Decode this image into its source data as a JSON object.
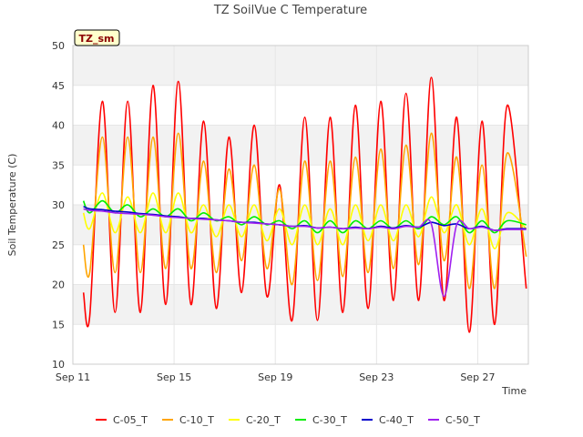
{
  "chart_data": {
    "type": "line",
    "title": "TZ SoilVue C Temperature",
    "badge": "TZ_sm",
    "xlabel": "Time",
    "ylabel": "Soil Temperature (C)",
    "xlim": [
      "2023-09-11",
      "2023-09-29"
    ],
    "ylim": [
      10,
      50
    ],
    "yticks": [
      10,
      15,
      20,
      25,
      30,
      35,
      40,
      45,
      50
    ],
    "xticks": [
      {
        "date": "2023-09-11",
        "label": "Sep 11"
      },
      {
        "date": "2023-09-15",
        "label": "Sep 15"
      },
      {
        "date": "2023-09-19",
        "label": "Sep 19"
      },
      {
        "date": "2023-09-23",
        "label": "Sep 23"
      },
      {
        "date": "2023-09-27",
        "label": "Sep 27"
      }
    ],
    "grid": true,
    "banded_background": true,
    "legend_position": "bottom",
    "x": [
      "2023-09-11 10:00",
      "2023-09-11 16:00",
      "2023-09-12 04:00",
      "2023-09-12 16:00",
      "2023-09-13 04:00",
      "2023-09-13 16:00",
      "2023-09-14 04:00",
      "2023-09-14 16:00",
      "2023-09-15 04:00",
      "2023-09-15 16:00",
      "2023-09-16 04:00",
      "2023-09-16 16:00",
      "2023-09-17 04:00",
      "2023-09-17 16:00",
      "2023-09-18 04:00",
      "2023-09-18 16:00",
      "2023-09-19 04:00",
      "2023-09-19 16:00",
      "2023-09-20 04:00",
      "2023-09-20 16:00",
      "2023-09-21 04:00",
      "2023-09-21 16:00",
      "2023-09-22 04:00",
      "2023-09-22 16:00",
      "2023-09-23 04:00",
      "2023-09-23 16:00",
      "2023-09-24 04:00",
      "2023-09-24 16:00",
      "2023-09-25 04:00",
      "2023-09-25 16:00",
      "2023-09-26 04:00",
      "2023-09-26 16:00",
      "2023-09-27 04:00",
      "2023-09-27 16:00",
      "2023-09-28 04:00",
      "2023-09-28 16:00",
      "2023-09-28 22:00"
    ],
    "series": [
      {
        "name": "C-05_T",
        "color": "#ff0000",
        "values": [
          19,
          16,
          43,
          16.5,
          43,
          16.5,
          45,
          17.5,
          45.5,
          17.5,
          40.5,
          17,
          38.5,
          19,
          40,
          18.5,
          32.5,
          15.5,
          41,
          15.5,
          41,
          16.5,
          42.5,
          17,
          43,
          18,
          44,
          18,
          46,
          18,
          41,
          14,
          40.5,
          15,
          42.5,
          null,
          19.5
        ]
      },
      {
        "name": "C-10_T",
        "color": "#ffa500",
        "values": [
          25,
          21.5,
          38.5,
          21.5,
          38.5,
          21.5,
          38.5,
          22,
          39,
          22,
          35.5,
          21.5,
          34.5,
          23,
          35,
          22,
          32,
          20,
          35.5,
          20.5,
          35.5,
          21,
          36,
          21.5,
          37,
          22,
          37.5,
          22.5,
          39,
          23,
          36,
          19.5,
          35,
          19.5,
          36.5,
          null,
          23.5
        ]
      },
      {
        "name": "C-20_T",
        "color": "#ffff00",
        "values": [
          29,
          27,
          31.5,
          26.5,
          31,
          26.5,
          31.5,
          26.5,
          31.5,
          26.5,
          30,
          26,
          30,
          26,
          30,
          25.5,
          29.5,
          25,
          30,
          25,
          29.5,
          25,
          30,
          25.5,
          30,
          25.5,
          30,
          26,
          31,
          26.5,
          30,
          25,
          29.5,
          24.5,
          29,
          null,
          27
        ]
      },
      {
        "name": "C-30_T",
        "color": "#00ee00",
        "values": [
          30.5,
          29,
          30.5,
          29,
          30,
          28.5,
          29.5,
          28.5,
          29.5,
          28,
          29,
          28,
          28.5,
          27.5,
          28.5,
          27.5,
          28,
          27,
          28,
          26.5,
          28,
          26.5,
          28,
          27,
          28,
          27,
          28,
          27,
          28.5,
          27.5,
          28.5,
          26.5,
          28,
          26.5,
          28,
          null,
          27.5
        ]
      },
      {
        "name": "C-40_T",
        "color": "#0000cc",
        "values": [
          29.8,
          29.5,
          29.4,
          29.2,
          29.1,
          28.9,
          28.8,
          28.6,
          28.5,
          28.3,
          28.3,
          28.1,
          28.0,
          27.8,
          27.8,
          27.6,
          27.5,
          27.3,
          27.4,
          27.1,
          27.2,
          27.0,
          27.2,
          27.0,
          27.3,
          27.1,
          27.4,
          27.2,
          27.8,
          27.4,
          27.6,
          27.0,
          27.3,
          26.8,
          27.0,
          null,
          27.0
        ]
      },
      {
        "name": "C-50_T",
        "color": "#a020f0",
        "values": [
          29.5,
          29.3,
          29.2,
          29.0,
          28.9,
          28.8,
          28.7,
          28.5,
          28.4,
          28.3,
          28.2,
          28.1,
          28.0,
          27.8,
          27.7,
          27.6,
          27.5,
          27.3,
          27.3,
          27.1,
          27.2,
          27.0,
          27.1,
          27.0,
          27.2,
          27.0,
          27.3,
          27.2,
          27.6,
          18.5,
          27.5,
          27.0,
          27.2,
          26.8,
          26.9,
          null,
          26.9
        ]
      }
    ]
  }
}
